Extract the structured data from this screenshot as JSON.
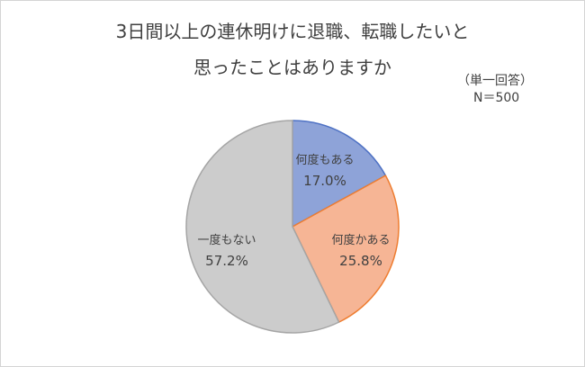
{
  "chart_data": {
    "type": "pie",
    "title_lines": [
      "3日間以上の連休明けに退職、転職したいと",
      "思ったことはありますか"
    ],
    "notes": [
      "（単一回答）",
      "N＝500"
    ],
    "slices": [
      {
        "label": "何度もある",
        "value": 17.0,
        "display": "17.0%",
        "fill": "#8ea3d8",
        "stroke": "#4f72c4"
      },
      {
        "label": "何度かある",
        "value": 25.8,
        "display": "25.8%",
        "fill": "#f6b595",
        "stroke": "#ee7d31"
      },
      {
        "label": "一度もない",
        "value": 57.2,
        "display": "57.2%",
        "fill": "#cccccc",
        "stroke": "#a5a5a5"
      }
    ],
    "start": "12 o'clock",
    "direction": "clockwise",
    "legend": "none"
  }
}
